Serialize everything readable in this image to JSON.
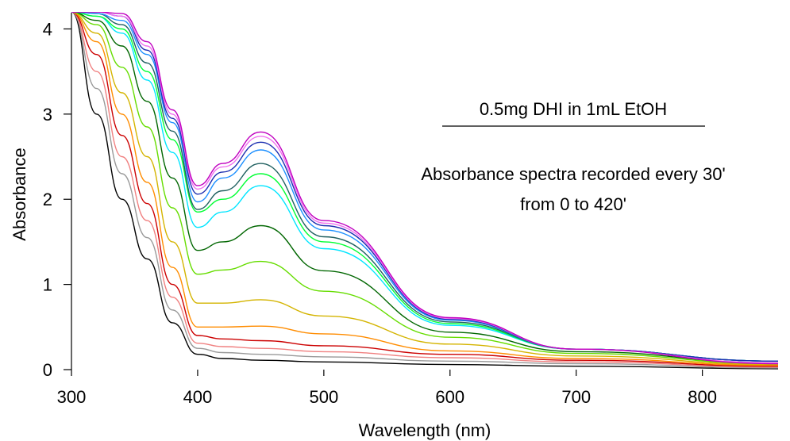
{
  "chart_data": {
    "type": "line",
    "title": "",
    "xlabel": "Wavelength (nm)",
    "ylabel": "Absorbance",
    "xlim": [
      300,
      860
    ],
    "ylim": [
      0,
      4.2
    ],
    "x_ticks": [
      300,
      400,
      500,
      600,
      700,
      800
    ],
    "y_ticks": [
      0,
      1,
      2,
      3,
      4
    ],
    "grid": false,
    "legend": "none",
    "annotations": [
      "0.5mg DHI in 1mL EtOH",
      "Absorbance spectra recorded every 30'",
      "from 0 to 420'"
    ],
    "series": [
      {
        "color": "#000000",
        "x": [
          300,
          320,
          340,
          360,
          380,
          400,
          420,
          450,
          500,
          600,
          700,
          860
        ],
        "y": [
          4.2,
          3.0,
          2.0,
          1.3,
          0.55,
          0.18,
          0.13,
          0.11,
          0.09,
          0.06,
          0.04,
          0.01
        ]
      },
      {
        "color": "#999999",
        "x": [
          300,
          320,
          340,
          360,
          380,
          400,
          420,
          450,
          500,
          600,
          700,
          860
        ],
        "y": [
          4.2,
          3.3,
          2.3,
          1.55,
          0.7,
          0.25,
          0.2,
          0.18,
          0.15,
          0.1,
          0.07,
          0.02
        ]
      },
      {
        "color": "#F08080",
        "x": [
          300,
          320,
          340,
          360,
          380,
          400,
          420,
          450,
          500,
          600,
          700,
          860
        ],
        "y": [
          4.2,
          3.5,
          2.5,
          1.75,
          0.85,
          0.31,
          0.27,
          0.25,
          0.21,
          0.14,
          0.09,
          0.03
        ]
      },
      {
        "color": "#CC0000",
        "x": [
          300,
          320,
          340,
          360,
          380,
          400,
          420,
          450,
          500,
          600,
          700,
          860
        ],
        "y": [
          4.2,
          3.7,
          2.75,
          1.95,
          1.0,
          0.4,
          0.36,
          0.34,
          0.28,
          0.18,
          0.11,
          0.04
        ]
      },
      {
        "color": "#FF8C00",
        "x": [
          300,
          320,
          340,
          360,
          380,
          400,
          420,
          450,
          500,
          600,
          700,
          860
        ],
        "y": [
          4.2,
          3.85,
          3.0,
          2.2,
          1.2,
          0.5,
          0.5,
          0.51,
          0.42,
          0.22,
          0.13,
          0.05
        ]
      },
      {
        "color": "#D4B400",
        "x": [
          300,
          320,
          340,
          360,
          380,
          400,
          420,
          450,
          500,
          600,
          700,
          860
        ],
        "y": [
          4.2,
          3.95,
          3.25,
          2.5,
          1.5,
          0.78,
          0.78,
          0.82,
          0.63,
          0.3,
          0.16,
          0.06
        ]
      },
      {
        "color": "#66DD00",
        "x": [
          300,
          320,
          340,
          360,
          380,
          400,
          420,
          450,
          500,
          600,
          700,
          860
        ],
        "y": [
          4.2,
          4.05,
          3.55,
          2.85,
          1.9,
          1.12,
          1.17,
          1.27,
          0.92,
          0.38,
          0.19,
          0.07
        ]
      },
      {
        "color": "#006600",
        "x": [
          300,
          320,
          340,
          360,
          380,
          400,
          420,
          450,
          500,
          600,
          700,
          860
        ],
        "y": [
          4.2,
          4.1,
          3.8,
          3.15,
          2.25,
          1.4,
          1.5,
          1.69,
          1.16,
          0.44,
          0.21,
          0.08
        ]
      },
      {
        "color": "#00E5FF",
        "x": [
          300,
          320,
          340,
          360,
          380,
          400,
          420,
          450,
          500,
          600,
          700,
          860
        ],
        "y": [
          4.2,
          4.15,
          3.95,
          3.4,
          2.55,
          1.67,
          1.85,
          2.16,
          1.42,
          0.52,
          0.24,
          0.1
        ]
      },
      {
        "color": "#00FF33",
        "x": [
          300,
          320,
          340,
          360,
          380,
          400,
          420,
          450,
          500,
          600,
          700,
          860
        ],
        "y": [
          4.2,
          4.15,
          4.0,
          3.5,
          2.7,
          1.85,
          2.0,
          2.3,
          1.5,
          0.54,
          0.24,
          0.1
        ]
      },
      {
        "color": "#206060",
        "x": [
          300,
          320,
          340,
          360,
          380,
          400,
          420,
          450,
          500,
          600,
          700,
          860
        ],
        "y": [
          4.2,
          4.18,
          4.05,
          3.6,
          2.8,
          1.88,
          2.1,
          2.42,
          1.56,
          0.56,
          0.24,
          0.1
        ]
      },
      {
        "color": "#1E90FF",
        "x": [
          300,
          320,
          340,
          360,
          380,
          400,
          420,
          450,
          500,
          600,
          700,
          860
        ],
        "y": [
          4.2,
          4.18,
          4.1,
          3.7,
          2.9,
          1.97,
          2.25,
          2.58,
          1.64,
          0.58,
          0.24,
          0.1
        ]
      },
      {
        "color": "#1C2FB0",
        "x": [
          300,
          320,
          340,
          360,
          380,
          400,
          420,
          450,
          500,
          600,
          700,
          860
        ],
        "y": [
          4.2,
          4.2,
          4.15,
          3.75,
          2.95,
          2.06,
          2.32,
          2.67,
          1.69,
          0.59,
          0.24,
          0.1
        ]
      },
      {
        "color": "#F070F0",
        "x": [
          300,
          320,
          340,
          360,
          380,
          400,
          420,
          450,
          500,
          600,
          700,
          860
        ],
        "y": [
          4.2,
          4.2,
          4.15,
          3.8,
          3.0,
          2.12,
          2.38,
          2.74,
          1.72,
          0.6,
          0.24,
          0.08
        ]
      },
      {
        "color": "#C000C0",
        "x": [
          300,
          320,
          340,
          360,
          380,
          400,
          420,
          450,
          500,
          600,
          700,
          860
        ],
        "y": [
          4.2,
          4.2,
          4.18,
          3.85,
          3.05,
          2.16,
          2.42,
          2.79,
          1.75,
          0.61,
          0.24,
          0.07
        ]
      }
    ]
  }
}
